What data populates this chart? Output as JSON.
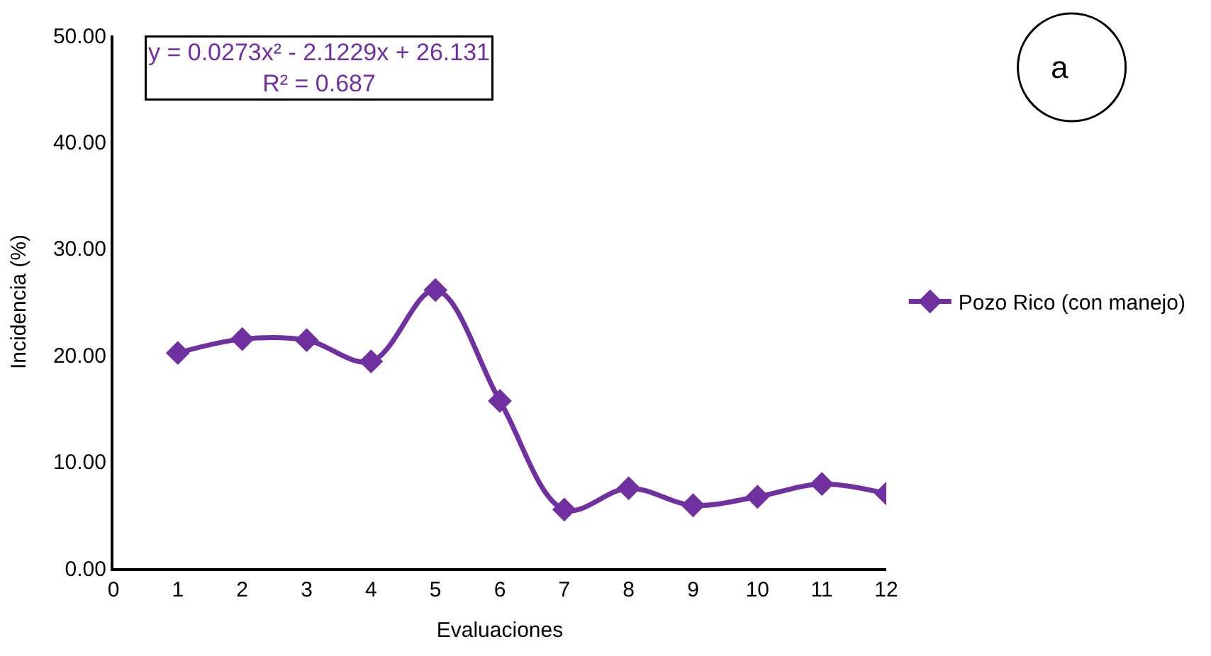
{
  "chart_data": {
    "type": "line",
    "x": [
      1,
      2,
      3,
      4,
      5,
      6,
      7,
      8,
      9,
      10,
      11,
      12
    ],
    "series": [
      {
        "name": "Pozo Rico (con manejo)",
        "color": "#7030a0",
        "values": [
          20.2,
          21.5,
          21.4,
          19.4,
          26.1,
          15.7,
          5.5,
          7.5,
          5.9,
          6.7,
          7.9,
          7.0
        ]
      }
    ],
    "xlabel": "Evaluaciones",
    "ylabel": "Incidencia (%)",
    "xlim": [
      0,
      12
    ],
    "xticks": [
      0,
      1,
      2,
      3,
      4,
      5,
      6,
      7,
      8,
      9,
      10,
      11,
      12
    ],
    "ylim": [
      0,
      50
    ],
    "yticks": [
      {
        "value": 0,
        "label": "0.00"
      },
      {
        "value": 10,
        "label": "10.00"
      },
      {
        "value": 20,
        "label": "20.00"
      },
      {
        "value": 30,
        "label": "30.00"
      },
      {
        "value": 40,
        "label": "40.00"
      },
      {
        "value": 50,
        "label": "50.00"
      }
    ],
    "annotations": [
      "y = 0.0273x² - 2.1229x + 26.131\nR² = 0.687",
      "a"
    ],
    "legend": "right",
    "marker": "diamond",
    "line_style": "solid"
  }
}
